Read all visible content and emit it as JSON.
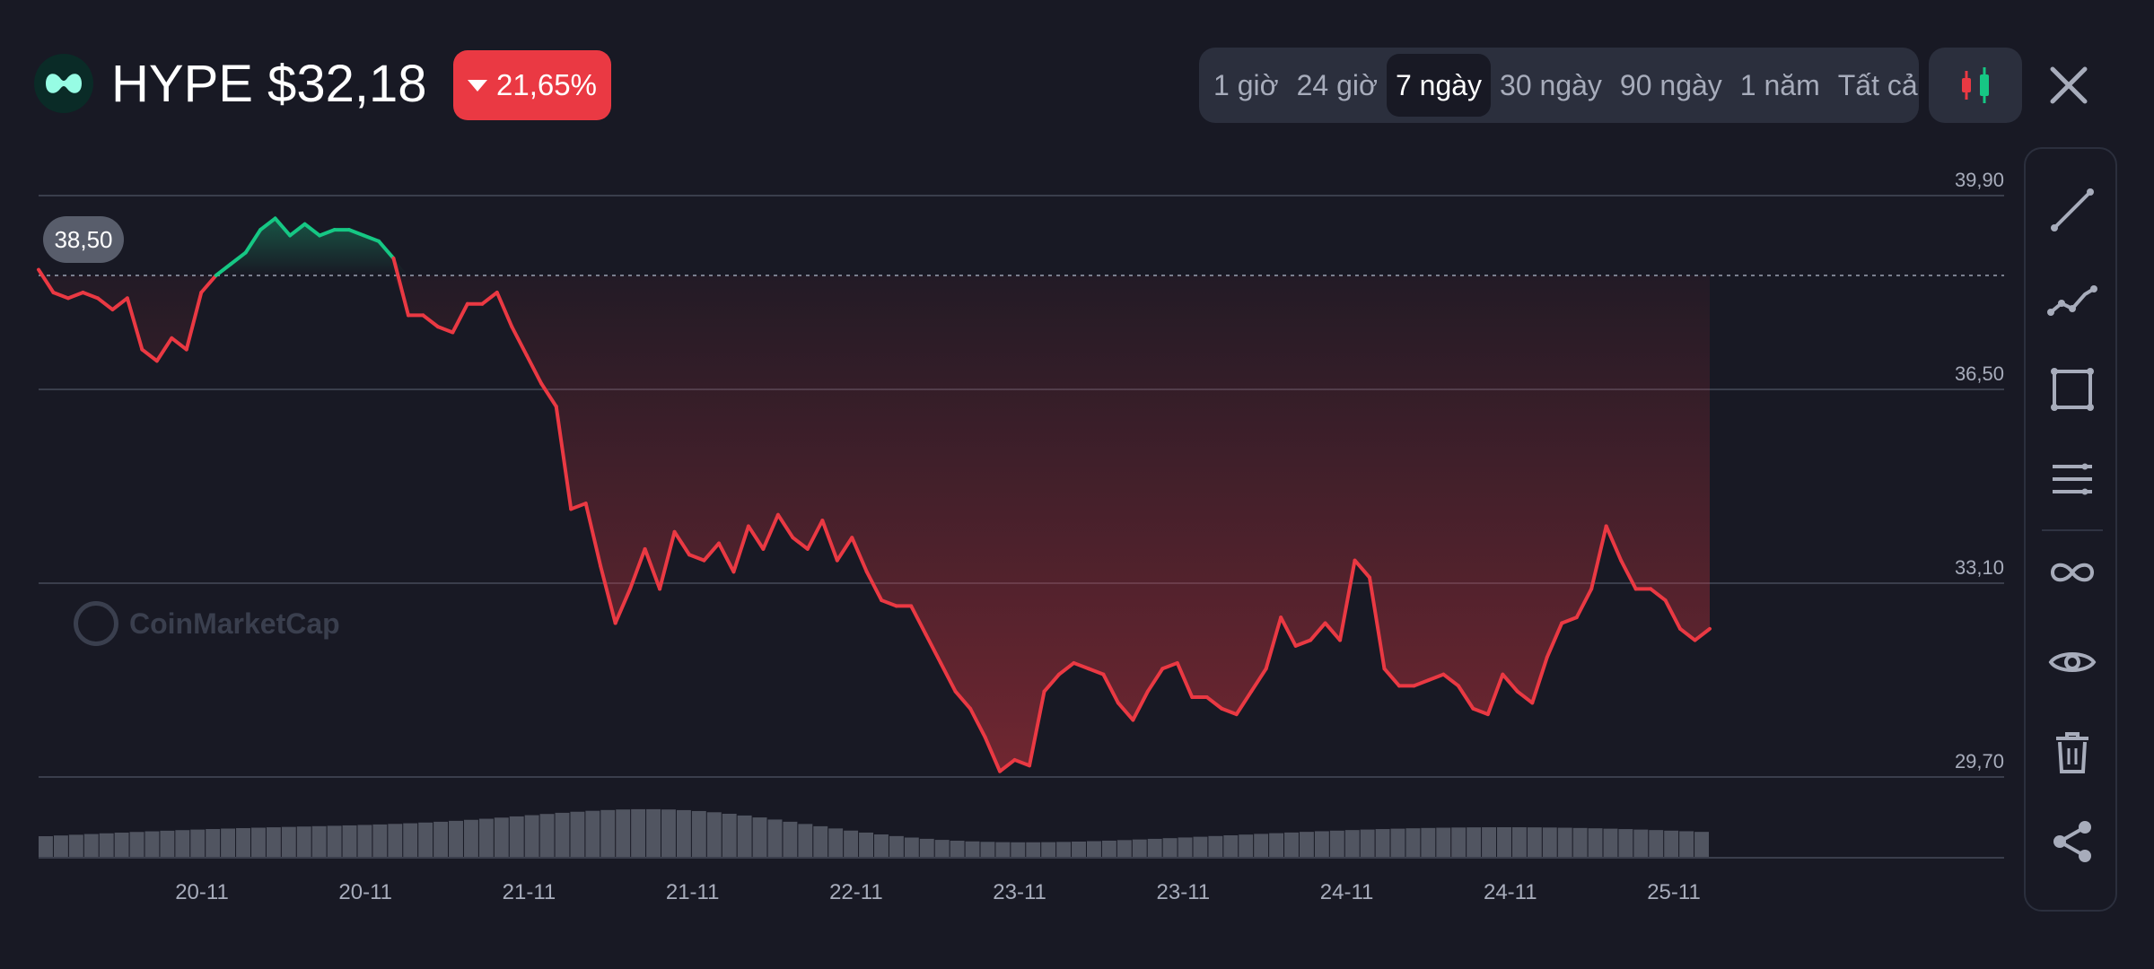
{
  "header": {
    "symbol_price": "HYPE $32,18",
    "change_percent": "21,65%",
    "change_direction": "down",
    "time_ranges": [
      {
        "label": "1 giờ",
        "active": false
      },
      {
        "label": "24 giờ",
        "active": false
      },
      {
        "label": "7 ngày",
        "active": true
      },
      {
        "label": "30 ngày",
        "active": false
      },
      {
        "label": "90 ngày",
        "active": false
      },
      {
        "label": "1 năm",
        "active": false
      },
      {
        "label": "Tất cả",
        "active": false
      }
    ],
    "chart_type_icon": "candlestick-icon",
    "close_icon": "close-icon"
  },
  "watermark": "CoinMarketCap",
  "toolbar": [
    {
      "name": "trend-line-icon"
    },
    {
      "name": "polyline-icon"
    },
    {
      "name": "rectangle-icon"
    },
    {
      "name": "horizontal-lines-icon"
    },
    {
      "name": "infinity-icon"
    },
    {
      "name": "eye-icon"
    },
    {
      "name": "trash-icon"
    },
    {
      "name": "share-icon"
    }
  ],
  "colors": {
    "background": "#181924",
    "up": "#16c784",
    "down": "#ea3943",
    "grid": "#3a3e4c",
    "axis_text": "#a7acbb"
  },
  "chart_data": {
    "type": "line",
    "reference_label": "38,50",
    "reference_value": 38.5,
    "y_ticks": [
      "39,90",
      "36,50",
      "33,10",
      "29,70"
    ],
    "y_tick_values": [
      39.9,
      36.5,
      33.1,
      29.7
    ],
    "ylim": [
      29.7,
      39.9
    ],
    "x_tick_labels": [
      "20-11",
      "20-11",
      "21-11",
      "21-11",
      "22-11",
      "23-11",
      "23-11",
      "24-11",
      "24-11",
      "25-11"
    ],
    "series": [
      {
        "values": [
          38.6,
          38.2,
          38.1,
          38.2,
          38.1,
          37.9,
          38.1,
          37.2,
          37.0,
          37.4,
          37.2,
          38.2,
          38.5,
          38.7,
          38.9,
          39.3,
          39.5,
          39.2,
          39.4,
          39.2,
          39.3,
          39.3,
          39.2,
          39.1,
          38.8,
          37.8,
          37.8,
          37.6,
          37.5,
          38.0,
          38.0,
          38.2,
          37.6,
          37.1,
          36.6,
          36.2,
          34.4,
          34.5,
          33.4,
          32.4,
          33.0,
          33.7,
          33.0,
          34.0,
          33.6,
          33.5,
          33.8,
          33.3,
          34.1,
          33.7,
          34.3,
          33.9,
          33.7,
          34.2,
          33.5,
          33.9,
          33.3,
          32.8,
          32.7,
          32.7,
          32.2,
          31.7,
          31.2,
          30.9,
          30.4,
          29.8,
          30.0,
          29.9,
          31.2,
          31.5,
          31.7,
          31.6,
          31.5,
          31.0,
          30.7,
          31.2,
          31.6,
          31.7,
          31.1,
          31.1,
          30.9,
          30.8,
          31.2,
          31.6,
          32.5,
          32.0,
          32.1,
          32.4,
          32.1,
          33.5,
          33.2,
          31.6,
          31.3,
          31.3,
          31.4,
          31.5,
          31.3,
          30.9,
          30.8,
          31.5,
          31.2,
          31.0,
          31.8,
          32.4,
          32.5,
          33.0,
          34.1,
          33.5,
          33.0,
          33.0,
          32.8,
          32.3,
          32.1,
          32.3
        ]
      }
    ]
  }
}
